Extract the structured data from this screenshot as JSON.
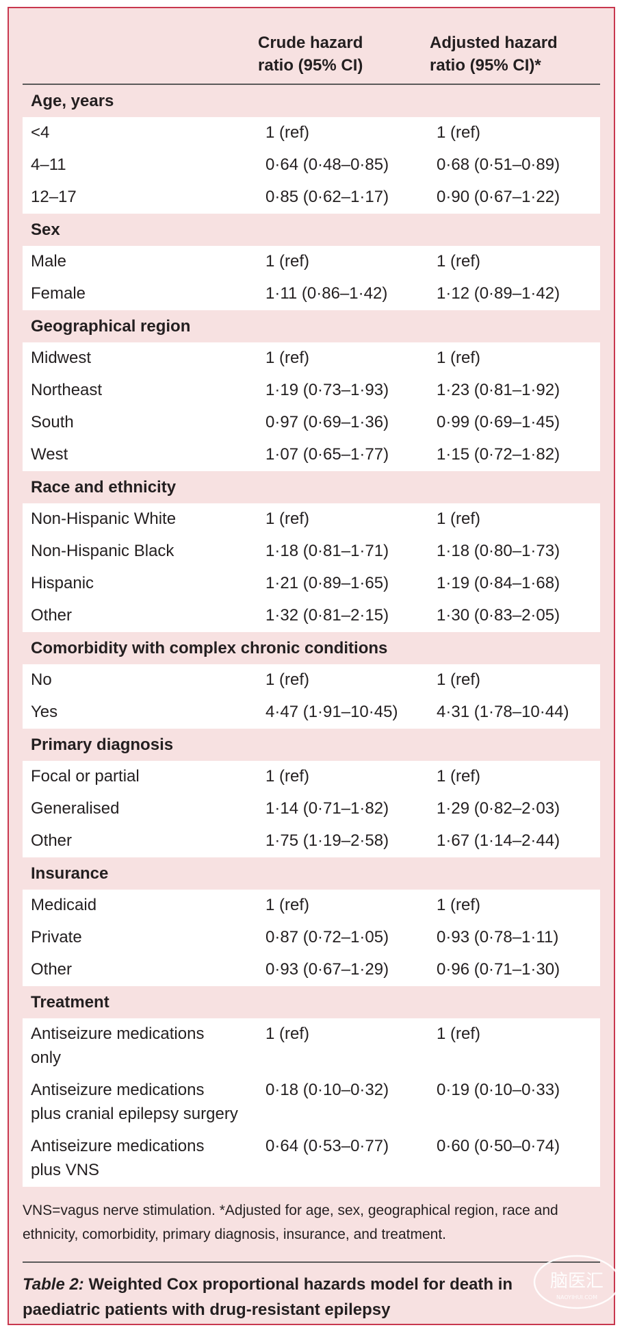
{
  "header": {
    "col1": "Crude hazard\nratio (95% CI)",
    "col2": "Adjusted hazard\nratio (95% CI)*"
  },
  "groups": [
    {
      "title": "Age, years",
      "rows": [
        {
          "label": "<4",
          "crude": "1 (ref)",
          "adjusted": "1 (ref)"
        },
        {
          "label": "4–11",
          "crude": "0·64 (0·48–0·85)",
          "adjusted": "0·68 (0·51–0·89)"
        },
        {
          "label": "12–17",
          "crude": "0·85 (0·62–1·17)",
          "adjusted": "0·90 (0·67–1·22)"
        }
      ]
    },
    {
      "title": "Sex",
      "rows": [
        {
          "label": "Male",
          "crude": "1 (ref)",
          "adjusted": "1 (ref)"
        },
        {
          "label": "Female",
          "crude": "1·11 (0·86–1·42)",
          "adjusted": "1·12 (0·89–1·42)"
        }
      ]
    },
    {
      "title": "Geographical region",
      "rows": [
        {
          "label": "Midwest",
          "crude": "1 (ref)",
          "adjusted": "1 (ref)"
        },
        {
          "label": "Northeast",
          "crude": "1·19 (0·73–1·93)",
          "adjusted": "1·23 (0·81–1·92)"
        },
        {
          "label": "South",
          "crude": "0·97 (0·69–1·36)",
          "adjusted": "0·99 (0·69–1·45)"
        },
        {
          "label": "West",
          "crude": "1·07 (0·65–1·77)",
          "adjusted": "1·15 (0·72–1·82)"
        }
      ]
    },
    {
      "title": "Race and ethnicity",
      "rows": [
        {
          "label": "Non-Hispanic White",
          "crude": "1 (ref)",
          "adjusted": "1 (ref)"
        },
        {
          "label": "Non-Hispanic Black",
          "crude": "1·18 (0·81–1·71)",
          "adjusted": "1·18 (0·80–1·73)"
        },
        {
          "label": "Hispanic",
          "crude": "1·21 (0·89–1·65)",
          "adjusted": "1·19 (0·84–1·68)"
        },
        {
          "label": "Other",
          "crude": "1·32 (0·81–2·15)",
          "adjusted": "1·30 (0·83–2·05)"
        }
      ]
    },
    {
      "title": "Comorbidity with complex chronic conditions",
      "rows": [
        {
          "label": "No",
          "crude": "1 (ref)",
          "adjusted": "1 (ref)"
        },
        {
          "label": "Yes",
          "crude": "4·47 (1·91–10·45)",
          "adjusted": "4·31 (1·78–10·44)"
        }
      ]
    },
    {
      "title": "Primary diagnosis",
      "rows": [
        {
          "label": "Focal or partial",
          "crude": "1 (ref)",
          "adjusted": "1 (ref)"
        },
        {
          "label": "Generalised",
          "crude": "1·14 (0·71–1·82)",
          "adjusted": "1·29 (0·82–2·03)"
        },
        {
          "label": "Other",
          "crude": "1·75 (1·19–2·58)",
          "adjusted": "1·67 (1·14–2·44)"
        }
      ]
    },
    {
      "title": "Insurance",
      "rows": [
        {
          "label": "Medicaid",
          "crude": "1 (ref)",
          "adjusted": "1 (ref)"
        },
        {
          "label": "Private",
          "crude": "0·87 (0·72–1·05)",
          "adjusted": "0·93 (0·78–1·11)"
        },
        {
          "label": "Other",
          "crude": "0·93 (0·67–1·29)",
          "adjusted": "0·96 (0·71–1·30)"
        }
      ]
    },
    {
      "title": "Treatment",
      "rows": [
        {
          "label": "Antiseizure medications\nonly",
          "crude": "1 (ref)",
          "adjusted": "1 (ref)"
        },
        {
          "label": "Antiseizure medications\nplus cranial epilepsy surgery",
          "crude": "0·18 (0·10–0·32)",
          "adjusted": "0·19 (0·10–0·33)"
        },
        {
          "label": "Antiseizure medications\nplus VNS",
          "crude": "0·64 (0·53–0·77)",
          "adjusted": "0·60 (0·50–0·74)"
        }
      ]
    }
  ],
  "footnote": "VNS=vagus nerve stimulation. *Adjusted for age, sex, geographical region, race and ethnicity, comorbidity, primary diagnosis, insurance, and treatment.",
  "caption": {
    "label": "Table 2:",
    "text": " Weighted Cox proportional hazards model for death in paediatric patients with drug-resistant epilepsy"
  },
  "watermark": {
    "text": "脑医汇",
    "subtext": "NAOYIHUI.COM",
    "color": "#ffffff"
  },
  "colors": {
    "border": "#c8374e",
    "panel": "#f7e1e1",
    "row_band": "#ffffff",
    "text": "#231f20"
  }
}
